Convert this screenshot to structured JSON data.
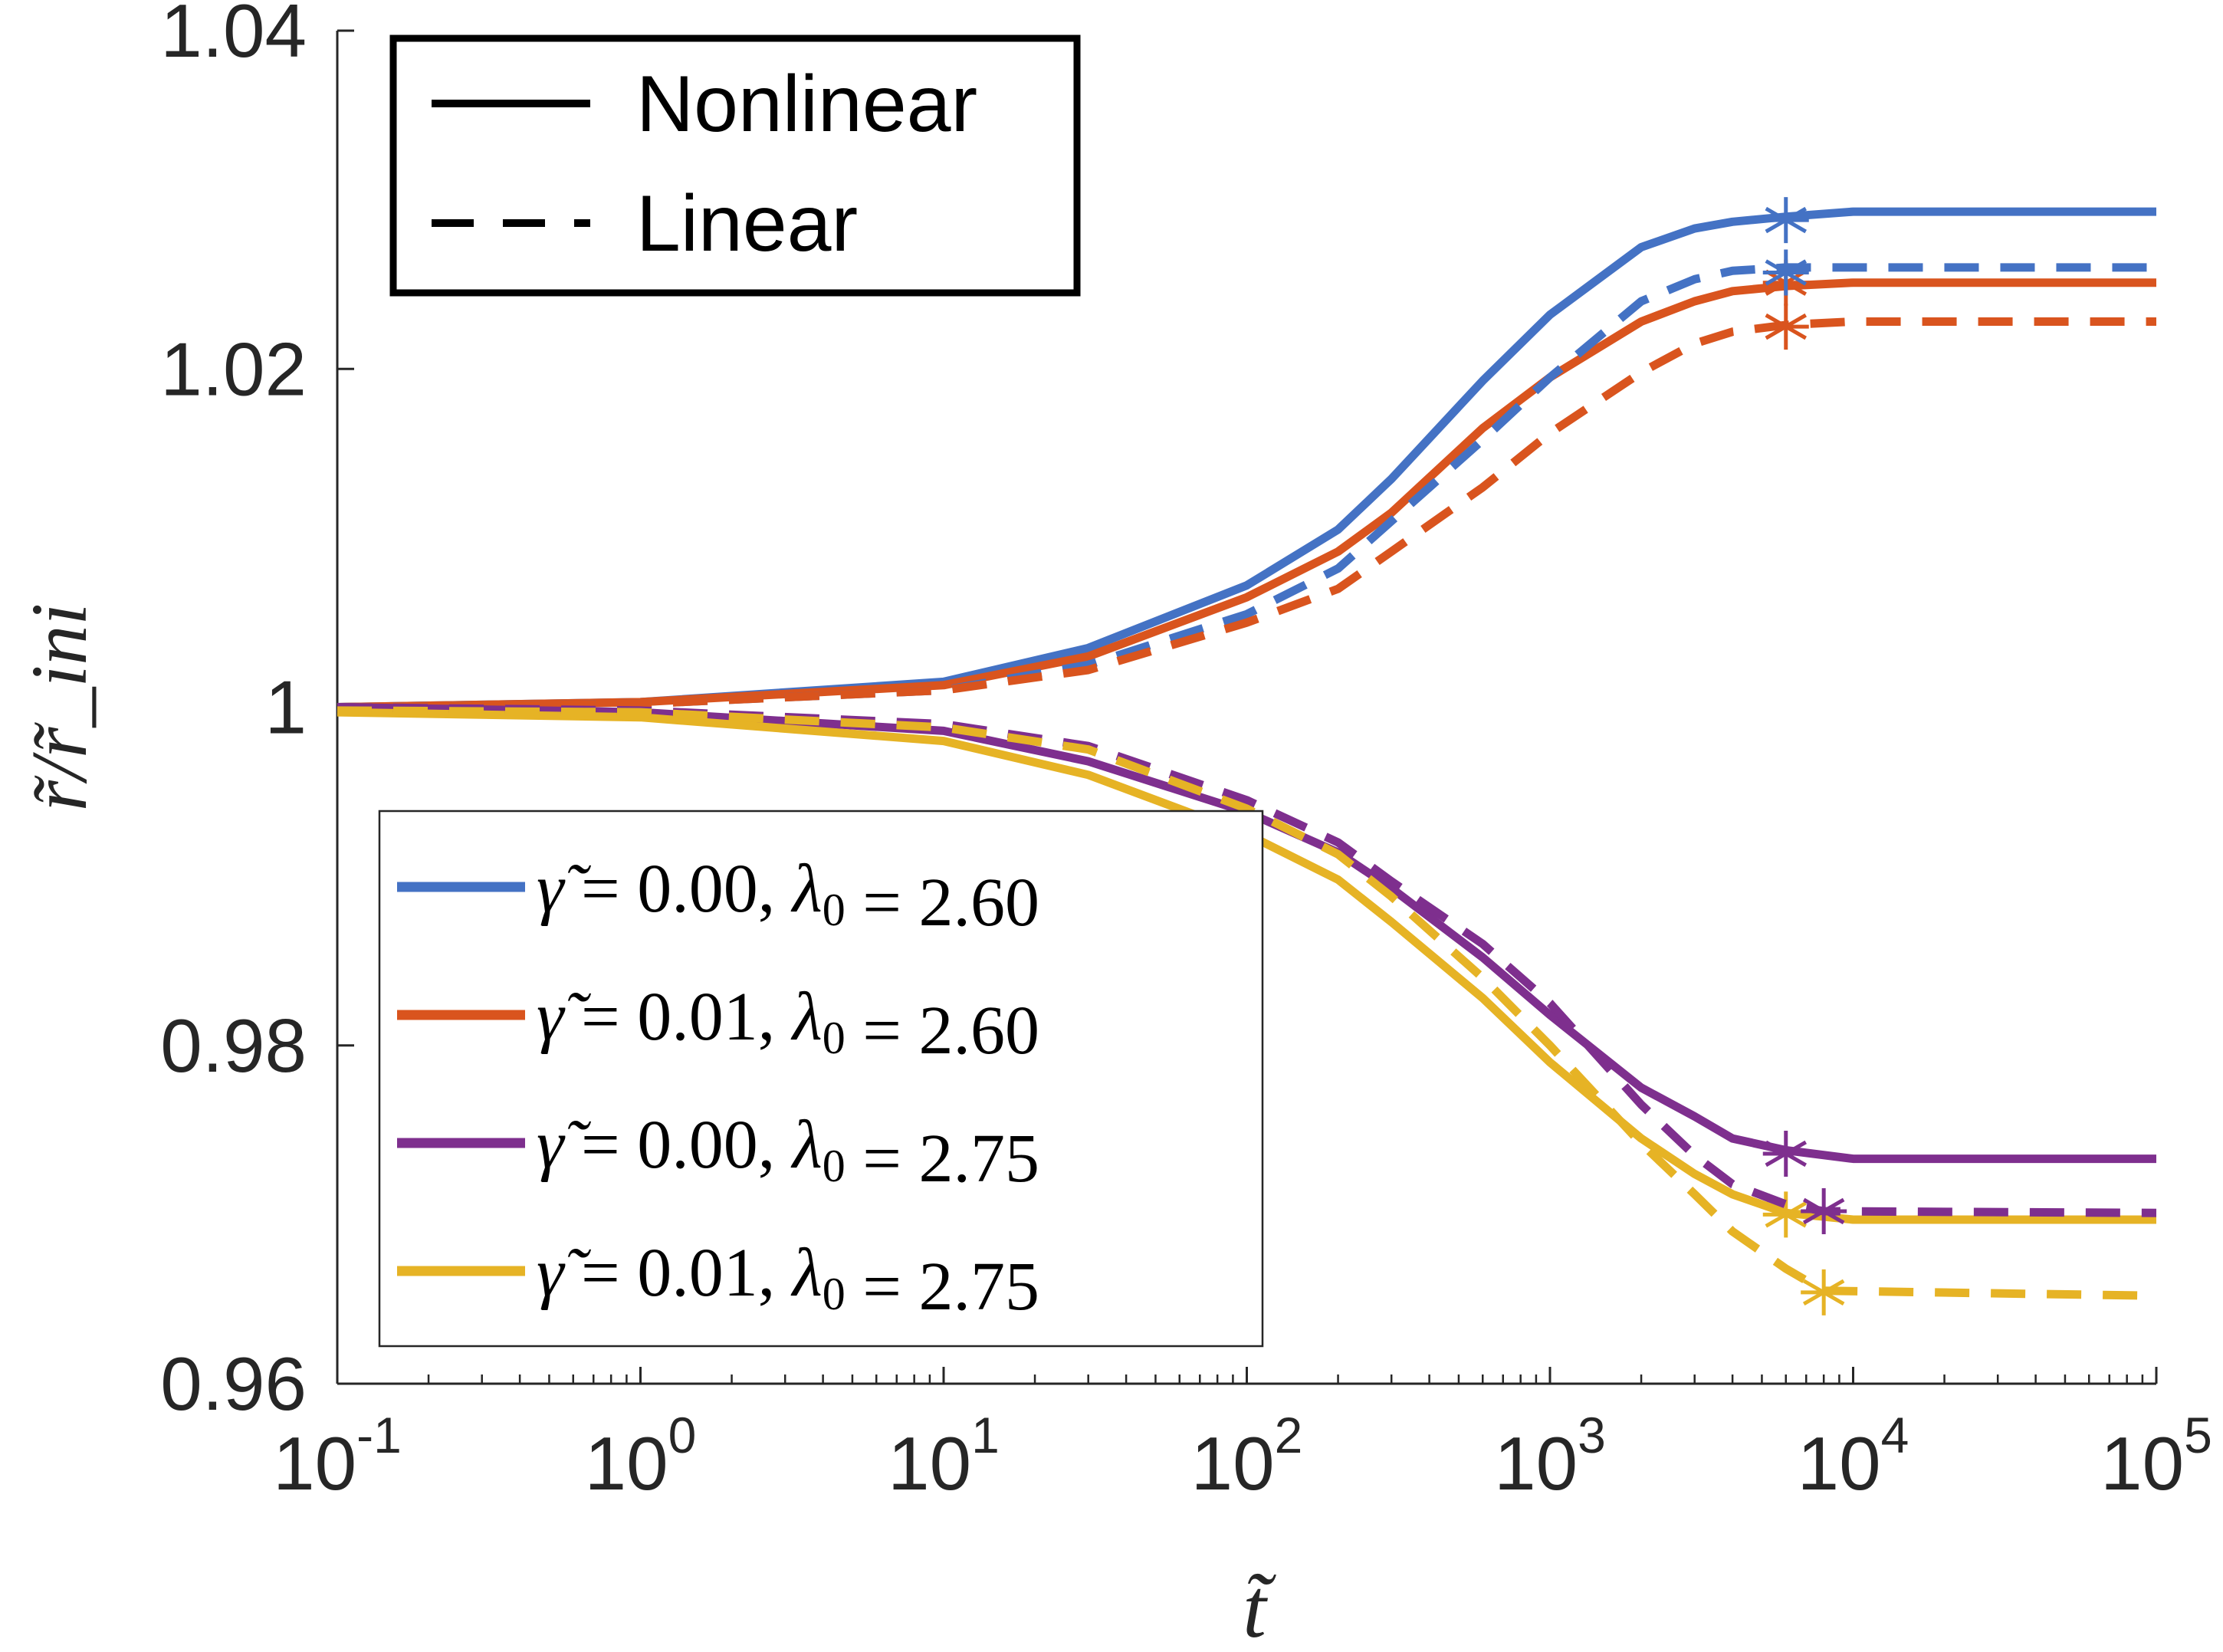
{
  "chart_data": {
    "type": "line",
    "title": "",
    "xlabel": "t̃",
    "ylabel": "r̃/r̃_ini",
    "xscale": "log",
    "xlim": [
      0.1,
      100000
    ],
    "ylim": [
      0.96,
      1.04
    ],
    "x_ticks": [
      {
        "base": "10",
        "exp": "-1",
        "value": 0.1
      },
      {
        "base": "10",
        "exp": "0",
        "value": 1
      },
      {
        "base": "10",
        "exp": "1",
        "value": 10
      },
      {
        "base": "10",
        "exp": "2",
        "value": 100
      },
      {
        "base": "10",
        "exp": "3",
        "value": 1000
      },
      {
        "base": "10",
        "exp": "4",
        "value": 10000
      },
      {
        "base": "10",
        "exp": "5",
        "value": 100000
      }
    ],
    "y_ticks": [
      {
        "label": "0.96",
        "value": 0.96
      },
      {
        "label": "0.98",
        "value": 0.98
      },
      {
        "label": "1",
        "value": 1.0
      },
      {
        "label": "1.02",
        "value": 1.02
      },
      {
        "label": "1.04",
        "value": 1.04
      }
    ],
    "grid": false,
    "style_legend": {
      "placement": "top-left",
      "entries": [
        {
          "label": "Nonlinear",
          "dash": "solid"
        },
        {
          "label": "Linear",
          "dash": "dashed"
        }
      ]
    },
    "series_legend": {
      "placement": "bottom-left",
      "entries": [
        {
          "gamma": "0.00",
          "lambda": "2.60",
          "color": "#4472C4"
        },
        {
          "gamma": "0.01",
          "lambda": "2.60",
          "color": "#D9541E"
        },
        {
          "gamma": "0.00",
          "lambda": "2.75",
          "color": "#7E2F8E"
        },
        {
          "gamma": "0.01",
          "lambda": "2.75",
          "color": "#E6B325"
        }
      ]
    },
    "series": [
      {
        "name": "γ̃ = 0.00, λ0 = 2.60",
        "model": "Nonlinear",
        "color": "#4472C4",
        "x": [
          0.1,
          1,
          10,
          30,
          100,
          200,
          300,
          600,
          1000,
          2000,
          3000,
          4000,
          6000,
          10000,
          100000
        ],
        "y": [
          1.0,
          1.0003,
          1.0015,
          1.0035,
          1.0072,
          1.0105,
          1.0135,
          1.0193,
          1.0232,
          1.0272,
          1.0283,
          1.0287,
          1.029,
          1.0293,
          1.0293
        ],
        "marker": {
          "x": 6000,
          "y": 1.0288
        }
      },
      {
        "name": "γ̃ = 0.01, λ0 = 2.60",
        "model": "Nonlinear",
        "color": "#D9541E",
        "x": [
          0.1,
          1,
          10,
          30,
          100,
          200,
          300,
          600,
          1000,
          2000,
          3000,
          4000,
          6000,
          10000,
          100000
        ],
        "y": [
          1.0,
          1.0003,
          1.0013,
          1.003,
          1.0065,
          1.0092,
          1.0115,
          1.0165,
          1.0195,
          1.0228,
          1.024,
          1.0246,
          1.0249,
          1.0251,
          1.0251
        ],
        "marker": {
          "x": 6000,
          "y": 1.0251
        }
      },
      {
        "name": "γ̃ = 0.00, λ0 = 2.60",
        "model": "Linear",
        "color": "#4472C4",
        "x": [
          0.1,
          1,
          10,
          30,
          100,
          200,
          300,
          600,
          1000,
          2000,
          3000,
          4000,
          6000,
          10000,
          100000
        ],
        "y": [
          1.0,
          1.0002,
          1.001,
          1.0025,
          1.0055,
          1.0082,
          1.011,
          1.0158,
          1.0195,
          1.024,
          1.0253,
          1.0258,
          1.026,
          1.026,
          1.026
        ],
        "marker": {
          "x": 6000,
          "y": 1.0257
        }
      },
      {
        "name": "γ̃ = 0.01, λ0 = 2.60",
        "model": "Linear",
        "color": "#D9541E",
        "x": [
          0.1,
          1,
          10,
          30,
          100,
          200,
          300,
          600,
          1000,
          2000,
          3000,
          4000,
          6000,
          10000,
          100000
        ],
        "y": [
          1.0,
          1.0002,
          1.001,
          1.0022,
          1.005,
          1.007,
          1.0092,
          1.013,
          1.0162,
          1.0198,
          1.0215,
          1.0222,
          1.0226,
          1.0228,
          1.0228
        ],
        "marker": {
          "x": 6000,
          "y": 1.0225
        }
      },
      {
        "name": "γ̃ = 0.00, λ0 = 2.75",
        "model": "Nonlinear",
        "color": "#7E2F8E",
        "x": [
          0.1,
          1,
          10,
          30,
          100,
          200,
          300,
          600,
          1000,
          2000,
          3000,
          4000,
          6000,
          10000,
          100000
        ],
        "y": [
          1.0,
          0.9997,
          0.9986,
          0.9968,
          0.9938,
          0.9914,
          0.9893,
          0.9852,
          0.9818,
          0.9775,
          0.9758,
          0.9745,
          0.9738,
          0.9733,
          0.9733
        ],
        "marker": {
          "x": 6000,
          "y": 0.9736
        }
      },
      {
        "name": "γ̃ = 0.01, λ0 = 2.75",
        "model": "Nonlinear",
        "color": "#E6B325",
        "x": [
          0.1,
          1,
          10,
          30,
          100,
          200,
          300,
          600,
          1000,
          2000,
          3000,
          4000,
          6000,
          10000,
          100000
        ],
        "y": [
          0.9997,
          0.9994,
          0.998,
          0.996,
          0.9925,
          0.9898,
          0.9873,
          0.9828,
          0.979,
          0.9745,
          0.9724,
          0.9712,
          0.9701,
          0.9697,
          0.9697
        ],
        "marker": {
          "x": 6000,
          "y": 0.97
        }
      },
      {
        "name": "γ̃ = 0.00, λ0 = 2.75",
        "model": "Linear",
        "color": "#7E2F8E",
        "x": [
          0.1,
          1,
          10,
          30,
          100,
          200,
          300,
          600,
          1000,
          2000,
          3000,
          4000,
          6000,
          8000,
          100000
        ],
        "y": [
          1.0,
          0.9998,
          0.999,
          0.9977,
          0.9945,
          0.992,
          0.9897,
          0.986,
          0.9825,
          0.9765,
          0.9735,
          0.9718,
          0.9706,
          0.9702,
          0.9701
        ],
        "marker": {
          "x": 8000,
          "y": 0.9702
        }
      },
      {
        "name": "γ̃ = 0.01, λ0 = 2.75",
        "model": "Linear",
        "color": "#E6B325",
        "x": [
          0.1,
          1,
          10,
          30,
          100,
          200,
          300,
          600,
          1000,
          2000,
          3000,
          4000,
          6000,
          8000,
          100000
        ],
        "y": [
          0.9998,
          0.9997,
          0.9988,
          0.9975,
          0.994,
          0.9913,
          0.9888,
          0.984,
          0.98,
          0.9742,
          0.9712,
          0.969,
          0.9668,
          0.9655,
          0.9652
        ],
        "marker": {
          "x": 8000,
          "y": 0.9654
        }
      }
    ]
  }
}
